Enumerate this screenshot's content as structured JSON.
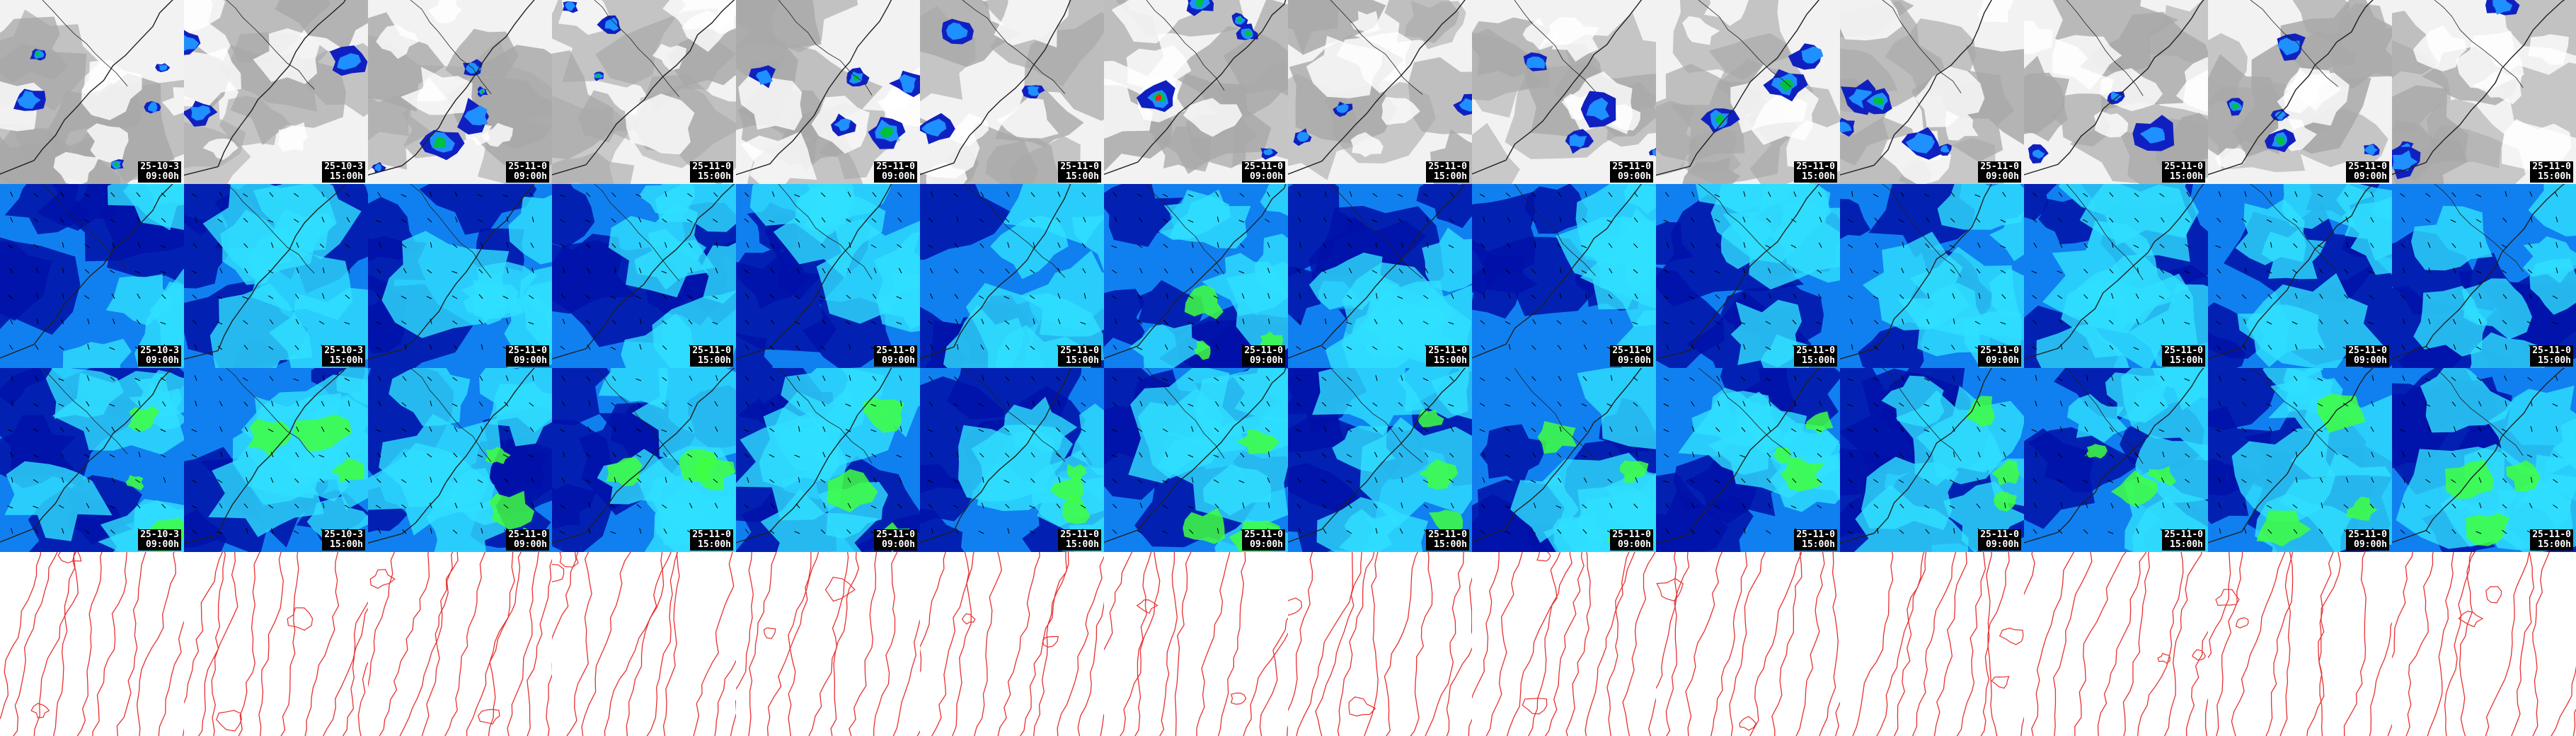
{
  "rows": [
    {
      "id": "cloud-precip",
      "kind": "cloud"
    },
    {
      "id": "wind-field-a",
      "kind": "wind"
    },
    {
      "id": "wind-field-b",
      "kind": "wind"
    },
    {
      "id": "pressure-isobars",
      "kind": "isobar"
    }
  ],
  "frames": [
    {
      "date": "25-10-3",
      "time": "09:00h"
    },
    {
      "date": "25-10-3",
      "time": "15:00h"
    },
    {
      "date": "25-11-0",
      "time": "09:00h"
    },
    {
      "date": "25-11-0",
      "time": "15:00h"
    },
    {
      "date": "25-11-0",
      "time": "09:00h"
    },
    {
      "date": "25-11-0",
      "time": "15:00h"
    },
    {
      "date": "25-11-0",
      "time": "09:00h"
    },
    {
      "date": "25-11-0",
      "time": "15:00h"
    },
    {
      "date": "25-11-0",
      "time": "09:00h"
    },
    {
      "date": "25-11-0",
      "time": "15:00h"
    },
    {
      "date": "25-11-0",
      "time": "09:00h"
    },
    {
      "date": "25-11-0",
      "time": "15:00h"
    },
    {
      "date": "25-11-0",
      "time": "09:00h"
    },
    {
      "date": "25-11-0",
      "time": "15:00h"
    }
  ],
  "colors": {
    "cloud_gray": "#a8a8a8",
    "precip_light": "#1e90ff",
    "precip_mid": "#00c040",
    "precip_heavy": "#ff2020",
    "wind_dark": "#0010a8",
    "wind_mid": "#1080f0",
    "wind_light": "#30e0ff",
    "wind_strong": "#40ff40",
    "isobar": "#e83030",
    "coast": "#202020"
  },
  "icons": {
    "wind_barb": "wind-barb-icon"
  }
}
